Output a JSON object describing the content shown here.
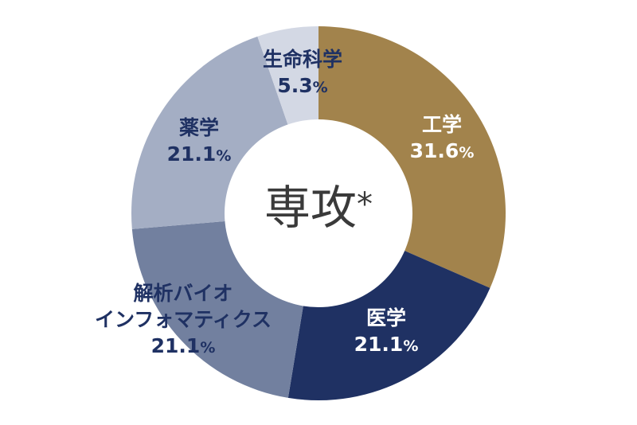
{
  "chart_data": {
    "type": "pie",
    "variant": "donut",
    "title": "専攻*",
    "start_angle_deg": 0,
    "direction": "clockwise",
    "categories": [
      "工学",
      "医学",
      "解析バイオインフォマティクス",
      "薬学",
      "生命科学"
    ],
    "values": [
      31.6,
      21.1,
      21.1,
      21.1,
      5.3
    ],
    "unit": "%",
    "colors": [
      "#a2834c",
      "#1f3163",
      "#72809f",
      "#a4aec4",
      "#d3d8e4"
    ],
    "labels": [
      {
        "lines": [
          "工学"
        ],
        "value": "31.6",
        "unit": "%"
      },
      {
        "lines": [
          "医学"
        ],
        "value": "21.1",
        "unit": "%"
      },
      {
        "lines": [
          "解析バイオ",
          "インフォマティクス"
        ],
        "value": "21.1",
        "unit": "%"
      },
      {
        "lines": [
          "薬学"
        ],
        "value": "21.1",
        "unit": "%"
      },
      {
        "lines": [
          "生命科学"
        ],
        "value": "5.3",
        "unit": "%"
      }
    ]
  },
  "center": {
    "title": "専攻",
    "asterisk": "*"
  },
  "label_text_colors": {
    "dark": "#1f3163",
    "light": "#ffffff"
  }
}
